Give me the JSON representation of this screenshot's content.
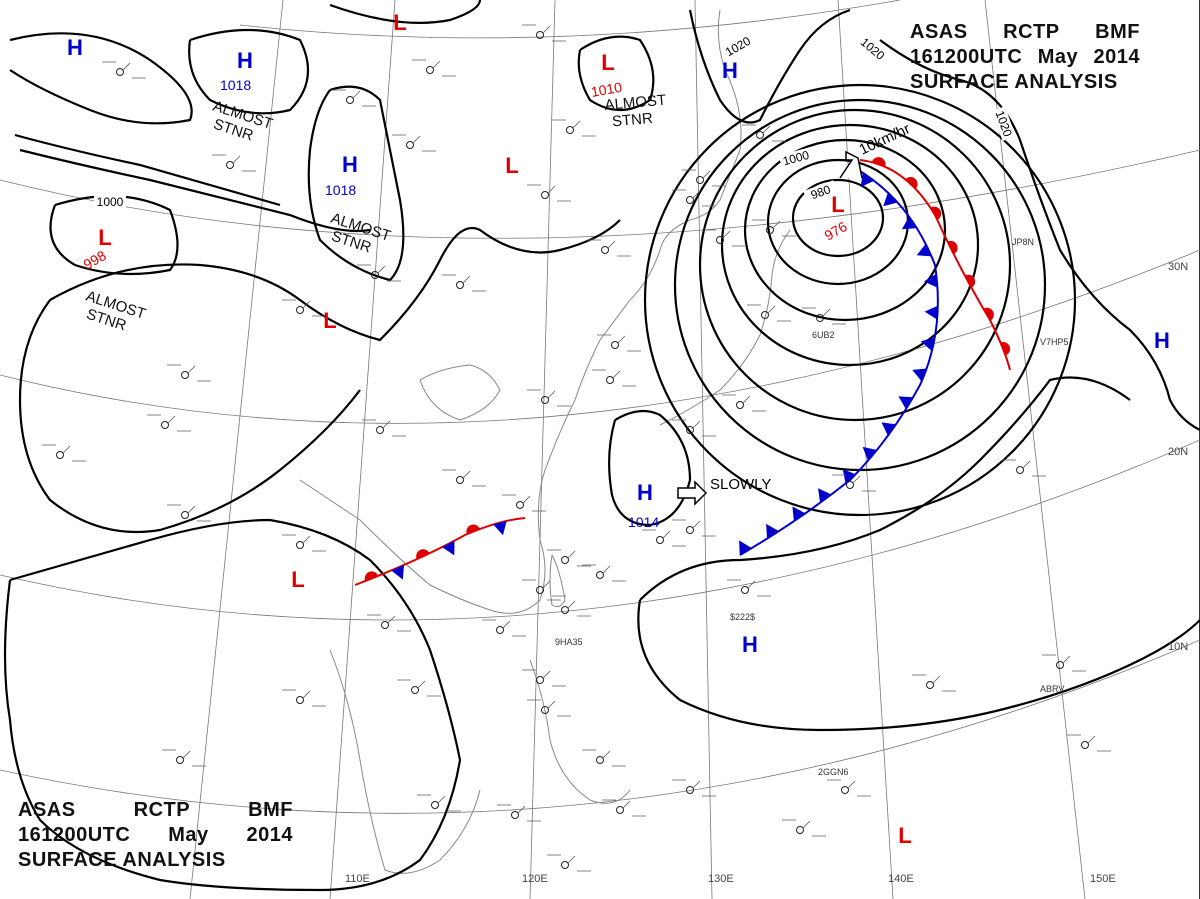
{
  "title": {
    "line1": [
      "ASAS",
      "RCTP",
      "BMF"
    ],
    "line2": [
      "161200UTC",
      "May",
      "2014"
    ],
    "line3": "SURFACE ANALYSIS"
  },
  "colors": {
    "high": "#0000cc",
    "low": "#dd0000",
    "isobar": "#000000",
    "grid": "#777777",
    "coast": "#888888"
  },
  "longitudes": [
    "110E",
    "120E",
    "130E",
    "140E",
    "150E"
  ],
  "latitudes": [
    "30N",
    "20N",
    "10N"
  ],
  "isobar_labels": [
    "1000",
    "1020",
    "1020",
    "1020",
    "980",
    "1000"
  ],
  "pressure_centers": [
    {
      "type": "H",
      "letter": "H"
    },
    {
      "type": "H",
      "letter": "H",
      "value": "1018",
      "note": [
        "ALMOST",
        "STNR"
      ]
    },
    {
      "type": "H",
      "letter": "H",
      "value": "1018",
      "note": [
        "ALMOST",
        "STNR"
      ]
    },
    {
      "type": "L",
      "letter": "L",
      "value": "998",
      "note": [
        "ALMOST",
        "STNR"
      ]
    },
    {
      "type": "L",
      "letter": "L"
    },
    {
      "type": "L",
      "letter": "L"
    },
    {
      "type": "L",
      "letter": "L",
      "value": "1010",
      "note": [
        "ALMOST",
        "STNR"
      ]
    },
    {
      "type": "L",
      "letter": "L"
    },
    {
      "type": "H",
      "letter": "H"
    },
    {
      "type": "L",
      "letter": "L",
      "value": "976"
    },
    {
      "type": "H",
      "letter": "H"
    },
    {
      "type": "H",
      "letter": "H",
      "value": "1014"
    },
    {
      "type": "L",
      "letter": "L"
    },
    {
      "type": "H",
      "letter": "H"
    },
    {
      "type": "L",
      "letter": "L"
    }
  ],
  "motion": [
    {
      "text": "SLOWLY"
    },
    {
      "text": "10km/hr"
    }
  ],
  "station_codes": [
    "6UB2",
    "JP8N",
    "V7HP5",
    "9HA35",
    "$222$",
    "ABRV",
    "2GGN6"
  ]
}
